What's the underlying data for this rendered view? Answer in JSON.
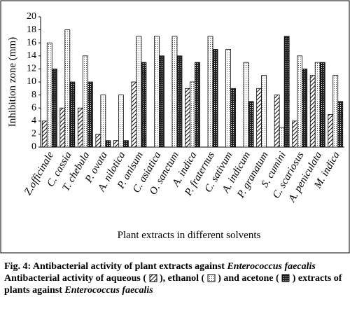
{
  "chart_data": {
    "type": "bar",
    "y_label": "Inhibition zone (mm)",
    "x_label": "Plant extracts in different solvents",
    "categories": [
      "Z.officinale",
      "C. cassia",
      "T. chebula",
      "P. ovata",
      "A. nilotica",
      "P. anisum",
      "C. asiatica",
      "O. sanctum",
      "A. indica",
      "P. fraternus",
      "C. sativum",
      "A. indicum",
      "P. granatum",
      "S. cumini",
      "C. scariosus",
      "A. peniculata",
      "M. indica"
    ],
    "series": [
      {
        "name": "aqueous",
        "color": "#000000",
        "values": [
          4,
          6,
          6,
          2,
          1,
          10,
          0,
          0,
          9,
          0,
          0,
          0,
          9,
          8,
          4,
          11,
          5
        ]
      },
      {
        "name": "ethanol",
        "color": "#000000",
        "values": [
          16,
          18,
          14,
          8,
          8,
          17,
          17,
          17,
          10,
          17,
          15,
          13,
          11,
          3,
          14,
          13,
          11
        ]
      },
      {
        "name": "acetone",
        "color": "#000000",
        "values": [
          12,
          10,
          10,
          1,
          1,
          13,
          14,
          14,
          13,
          15,
          9,
          7,
          0,
          17,
          12,
          13,
          7
        ]
      }
    ],
    "ylim": [
      0,
      20
    ],
    "yticks": [
      0,
      2,
      4,
      6,
      8,
      10,
      12,
      14,
      16,
      18,
      20
    ],
    "grid": false
  },
  "caption": {
    "title": "Fig. 4: Antibacterial activity of plant extracts against",
    "organism": "Enterococcus faecalis",
    "connectors": [
      "Antibacterial activity of",
      "(",
      "),",
      "(",
      ") and",
      "(",
      ") extracts of plants against"
    ]
  }
}
